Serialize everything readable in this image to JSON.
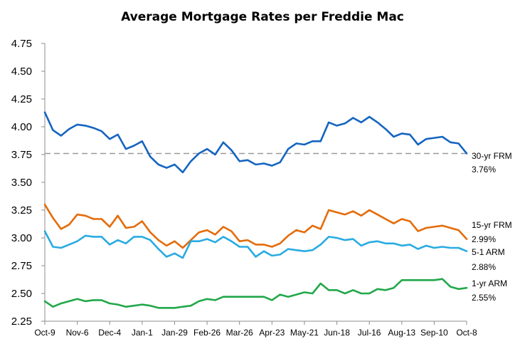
{
  "chart_data": {
    "type": "line",
    "title": "Average Mortgage Rates per Freddie Mac",
    "xlabel": "",
    "ylabel": "",
    "ylim": [
      2.25,
      4.75
    ],
    "yticks": [
      "2.25",
      "2.50",
      "2.75",
      "3.00",
      "3.25",
      "3.50",
      "3.75",
      "4.00",
      "4.25",
      "4.50",
      "4.75"
    ],
    "xtick_labels": [
      "Oct-9",
      "Nov-6",
      "Dec-4",
      "Jan-1",
      "Jan-29",
      "Feb-26",
      "Mar-26",
      "Apr-23",
      "May-21",
      "Jun-18",
      "Jul-16",
      "Aug-13",
      "Sep-10",
      "Oct-8"
    ],
    "grid": false,
    "legend": "none",
    "reference_line": {
      "value": 3.76,
      "style": "dashed",
      "color": "#9a9a9a"
    },
    "series": [
      {
        "name": "30-yr FRM",
        "value_label": "3.76%",
        "color": "#1565c0",
        "values": [
          4.13,
          3.97,
          3.92,
          3.98,
          4.02,
          4.01,
          3.99,
          3.96,
          3.89,
          3.93,
          3.8,
          3.83,
          3.87,
          3.73,
          3.66,
          3.63,
          3.66,
          3.59,
          3.69,
          3.76,
          3.8,
          3.75,
          3.86,
          3.79,
          3.69,
          3.7,
          3.66,
          3.67,
          3.65,
          3.68,
          3.8,
          3.85,
          3.84,
          3.87,
          3.87,
          4.04,
          4.01,
          4.03,
          4.08,
          4.04,
          4.09,
          4.04,
          3.98,
          3.91,
          3.94,
          3.93,
          3.84,
          3.89,
          3.9,
          3.91,
          3.86,
          3.85,
          3.76
        ]
      },
      {
        "name": "15-yr FRM",
        "value_label": "2.99%",
        "color": "#e46c0a",
        "values": [
          3.3,
          3.18,
          3.08,
          3.12,
          3.21,
          3.2,
          3.17,
          3.17,
          3.1,
          3.2,
          3.09,
          3.1,
          3.15,
          3.05,
          2.98,
          2.93,
          2.97,
          2.91,
          2.98,
          3.05,
          3.07,
          3.03,
          3.1,
          3.06,
          2.97,
          2.98,
          2.94,
          2.94,
          2.92,
          2.95,
          3.02,
          3.07,
          3.05,
          3.11,
          3.08,
          3.25,
          3.23,
          3.21,
          3.24,
          3.2,
          3.25,
          3.21,
          3.17,
          3.13,
          3.17,
          3.15,
          3.06,
          3.09,
          3.1,
          3.11,
          3.09,
          3.07,
          2.99
        ]
      },
      {
        "name": "5-1 ARM",
        "value_label": "2.88%",
        "color": "#29abe2",
        "values": [
          3.06,
          2.92,
          2.91,
          2.94,
          2.97,
          3.02,
          3.01,
          3.01,
          2.94,
          2.98,
          2.95,
          3.01,
          3.01,
          2.98,
          2.9,
          2.83,
          2.86,
          2.82,
          2.97,
          2.97,
          2.99,
          2.96,
          3.01,
          2.97,
          2.92,
          2.92,
          2.83,
          2.88,
          2.84,
          2.85,
          2.9,
          2.89,
          2.88,
          2.89,
          2.94,
          3.01,
          3.0,
          2.98,
          2.99,
          2.93,
          2.96,
          2.97,
          2.95,
          2.95,
          2.93,
          2.94,
          2.9,
          2.93,
          2.91,
          2.92,
          2.91,
          2.91,
          2.88
        ]
      },
      {
        "name": "1-yr ARM",
        "value_label": "2.55%",
        "color": "#22a84a",
        "values": [
          2.43,
          2.38,
          2.41,
          2.43,
          2.45,
          2.43,
          2.44,
          2.44,
          2.41,
          2.4,
          2.38,
          2.39,
          2.4,
          2.39,
          2.37,
          2.37,
          2.37,
          2.38,
          2.39,
          2.43,
          2.45,
          2.44,
          2.47,
          2.47,
          2.47,
          2.47,
          2.47,
          2.47,
          2.44,
          2.49,
          2.47,
          2.49,
          2.51,
          2.5,
          2.59,
          2.53,
          2.53,
          2.5,
          2.53,
          2.5,
          2.5,
          2.54,
          2.53,
          2.55,
          2.62,
          2.62,
          2.62,
          2.62,
          2.62,
          2.63,
          2.56,
          2.54,
          2.55
        ]
      }
    ]
  }
}
